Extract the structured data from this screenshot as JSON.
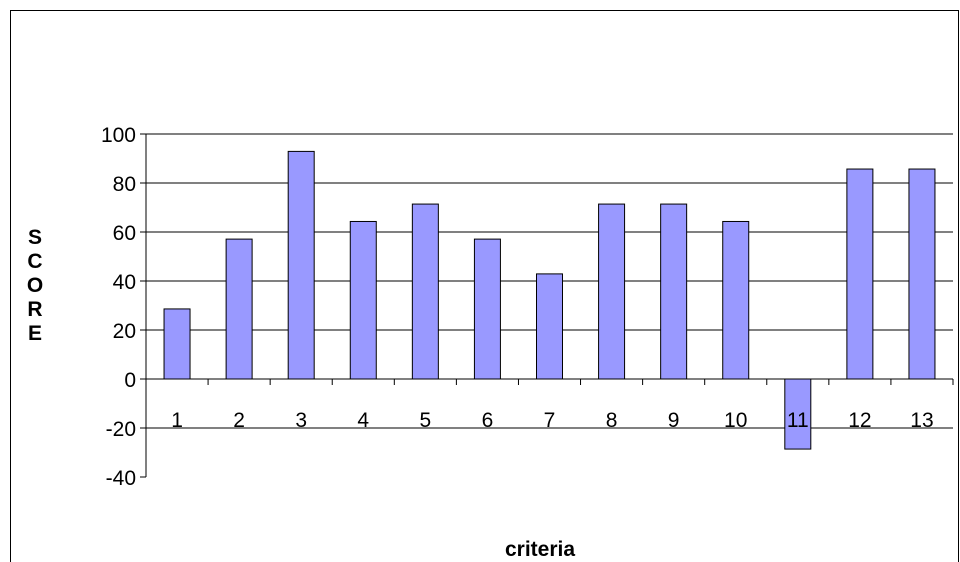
{
  "chart_data": {
    "type": "bar",
    "title": "",
    "xlabel": "criteria",
    "ylabel": "SCORE",
    "categories": [
      "1",
      "2",
      "3",
      "4",
      "5",
      "6",
      "7",
      "8",
      "9",
      "10",
      "11",
      "12",
      "13"
    ],
    "values": [
      28.6,
      57.1,
      92.9,
      64.3,
      71.4,
      57.1,
      42.9,
      71.4,
      71.4,
      64.3,
      -28.6,
      85.7,
      85.7
    ],
    "ylim": [
      -40,
      100
    ],
    "yticks": [
      100,
      80,
      60,
      40,
      20,
      0,
      -20,
      -40
    ],
    "grid": true,
    "legend": "none",
    "bar_color": "#9999ff",
    "bar_edge_color": "#000000"
  }
}
